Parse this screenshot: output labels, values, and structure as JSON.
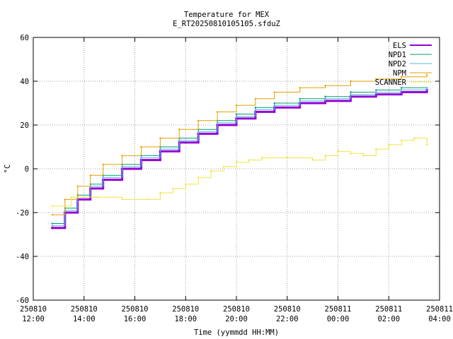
{
  "chart_data": {
    "type": "line",
    "title": "Temperature for MEX",
    "subtitle": "E_RT20250810105105.sfduZ",
    "xlabel": "Time (yymmdd HH:MM)",
    "ylabel": "°C",
    "xlim": [
      "2025-08-10 12:00",
      "2025-08-11 04:00"
    ],
    "ylim": [
      -60,
      60
    ],
    "y_ticks": [
      -60,
      -40,
      -20,
      0,
      20,
      40,
      60
    ],
    "x_ticks": [
      {
        "t": "2025-08-10 12:00",
        "date": "250810",
        "time": "12:00"
      },
      {
        "t": "2025-08-10 14:00",
        "date": "250810",
        "time": "14:00"
      },
      {
        "t": "2025-08-10 16:00",
        "date": "250810",
        "time": "16:00"
      },
      {
        "t": "2025-08-10 18:00",
        "date": "250810",
        "time": "18:00"
      },
      {
        "t": "2025-08-10 20:00",
        "date": "250810",
        "time": "20:00"
      },
      {
        "t": "2025-08-10 22:00",
        "date": "250810",
        "time": "22:00"
      },
      {
        "t": "2025-08-11 00:00",
        "date": "250811",
        "time": "00:00"
      },
      {
        "t": "2025-08-11 02:00",
        "date": "250811",
        "time": "02:00"
      },
      {
        "t": "2025-08-11 04:00",
        "date": "250811",
        "time": "04:00"
      }
    ],
    "grid": true,
    "legend_position": "top-right",
    "series": [
      {
        "name": "ELS",
        "color": "#9400d3",
        "width": 3,
        "points": [
          [
            "2025-08-10 12:45",
            -27
          ],
          [
            "2025-08-10 13:15",
            -20
          ],
          [
            "2025-08-10 13:45",
            -14
          ],
          [
            "2025-08-10 14:15",
            -9
          ],
          [
            "2025-08-10 14:45",
            -5
          ],
          [
            "2025-08-10 15:30",
            0
          ],
          [
            "2025-08-10 16:15",
            4
          ],
          [
            "2025-08-10 17:00",
            8
          ],
          [
            "2025-08-10 17:45",
            12
          ],
          [
            "2025-08-10 18:30",
            16
          ],
          [
            "2025-08-10 19:15",
            20
          ],
          [
            "2025-08-10 20:00",
            23
          ],
          [
            "2025-08-10 20:45",
            26
          ],
          [
            "2025-08-10 21:30",
            28
          ],
          [
            "2025-08-10 22:30",
            30
          ],
          [
            "2025-08-10 23:30",
            31
          ],
          [
            "2025-08-11 00:30",
            33
          ],
          [
            "2025-08-11 01:30",
            34
          ],
          [
            "2025-08-11 02:30",
            35
          ],
          [
            "2025-08-11 03:30",
            36
          ]
        ]
      },
      {
        "name": "NPD1",
        "color": "#009e73",
        "width": 1,
        "points": [
          [
            "2025-08-10 12:45",
            -25
          ],
          [
            "2025-08-10 13:15",
            -18
          ],
          [
            "2025-08-10 13:45",
            -12
          ],
          [
            "2025-08-10 14:15",
            -7
          ],
          [
            "2025-08-10 14:45",
            -3
          ],
          [
            "2025-08-10 15:30",
            2
          ],
          [
            "2025-08-10 16:15",
            6
          ],
          [
            "2025-08-10 17:00",
            10
          ],
          [
            "2025-08-10 17:45",
            14
          ],
          [
            "2025-08-10 18:30",
            18
          ],
          [
            "2025-08-10 19:15",
            22
          ],
          [
            "2025-08-10 20:00",
            25
          ],
          [
            "2025-08-10 20:45",
            28
          ],
          [
            "2025-08-10 21:30",
            30
          ],
          [
            "2025-08-10 22:30",
            32
          ],
          [
            "2025-08-10 23:30",
            33
          ],
          [
            "2025-08-11 00:30",
            35
          ],
          [
            "2025-08-11 01:30",
            36
          ],
          [
            "2025-08-11 02:30",
            37
          ],
          [
            "2025-08-11 03:30",
            37
          ]
        ]
      },
      {
        "name": "NPD2",
        "color": "#56b4e9",
        "width": 1,
        "points": [
          [
            "2025-08-10 12:45",
            -26
          ],
          [
            "2025-08-10 13:15",
            -19
          ],
          [
            "2025-08-10 13:45",
            -13
          ],
          [
            "2025-08-10 14:15",
            -8
          ],
          [
            "2025-08-10 14:45",
            -4
          ],
          [
            "2025-08-10 15:30",
            1
          ],
          [
            "2025-08-10 16:15",
            5
          ],
          [
            "2025-08-10 17:00",
            9
          ],
          [
            "2025-08-10 17:45",
            13
          ],
          [
            "2025-08-10 18:30",
            17
          ],
          [
            "2025-08-10 19:15",
            21
          ],
          [
            "2025-08-10 20:00",
            24
          ],
          [
            "2025-08-10 20:45",
            27
          ],
          [
            "2025-08-10 21:30",
            29
          ],
          [
            "2025-08-10 22:30",
            31
          ],
          [
            "2025-08-10 23:30",
            32
          ],
          [
            "2025-08-11 00:30",
            34
          ],
          [
            "2025-08-11 01:30",
            35
          ],
          [
            "2025-08-11 02:30",
            36
          ],
          [
            "2025-08-11 03:30",
            37
          ]
        ]
      },
      {
        "name": "NPM",
        "color": "#e69f00",
        "width": 1,
        "points": [
          [
            "2025-08-10 12:45",
            -21
          ],
          [
            "2025-08-10 13:15",
            -14
          ],
          [
            "2025-08-10 13:45",
            -8
          ],
          [
            "2025-08-10 14:15",
            -3
          ],
          [
            "2025-08-10 14:45",
            2
          ],
          [
            "2025-08-10 15:30",
            6
          ],
          [
            "2025-08-10 16:15",
            10
          ],
          [
            "2025-08-10 17:00",
            14
          ],
          [
            "2025-08-10 17:45",
            18
          ],
          [
            "2025-08-10 18:30",
            22
          ],
          [
            "2025-08-10 19:15",
            26
          ],
          [
            "2025-08-10 20:00",
            29
          ],
          [
            "2025-08-10 20:45",
            32
          ],
          [
            "2025-08-10 21:30",
            35
          ],
          [
            "2025-08-10 22:30",
            37
          ],
          [
            "2025-08-10 23:30",
            38
          ],
          [
            "2025-08-11 00:30",
            40
          ],
          [
            "2025-08-11 01:30",
            41
          ],
          [
            "2025-08-11 02:30",
            42
          ],
          [
            "2025-08-11 03:30",
            43
          ]
        ]
      },
      {
        "name": "SCANNER",
        "color": "#f0e442",
        "width": 1,
        "points": [
          [
            "2025-08-10 12:45",
            -17
          ],
          [
            "2025-08-10 13:30",
            -13
          ],
          [
            "2025-08-10 14:30",
            -13
          ],
          [
            "2025-08-10 15:30",
            -14
          ],
          [
            "2025-08-10 16:30",
            -14
          ],
          [
            "2025-08-10 17:00",
            -11
          ],
          [
            "2025-08-10 17:30",
            -9
          ],
          [
            "2025-08-10 18:00",
            -7
          ],
          [
            "2025-08-10 18:30",
            -4
          ],
          [
            "2025-08-10 19:00",
            -1
          ],
          [
            "2025-08-10 19:30",
            1
          ],
          [
            "2025-08-10 20:00",
            3
          ],
          [
            "2025-08-10 20:30",
            4
          ],
          [
            "2025-08-10 21:00",
            5
          ],
          [
            "2025-08-10 22:00",
            5
          ],
          [
            "2025-08-10 23:00",
            4
          ],
          [
            "2025-08-10 23:30",
            6
          ],
          [
            "2025-08-11 00:00",
            8
          ],
          [
            "2025-08-11 00:30",
            7
          ],
          [
            "2025-08-11 01:00",
            6
          ],
          [
            "2025-08-11 01:30",
            9
          ],
          [
            "2025-08-11 02:00",
            11
          ],
          [
            "2025-08-11 02:30",
            13
          ],
          [
            "2025-08-11 03:00",
            14
          ],
          [
            "2025-08-11 03:30",
            11
          ]
        ]
      }
    ]
  }
}
